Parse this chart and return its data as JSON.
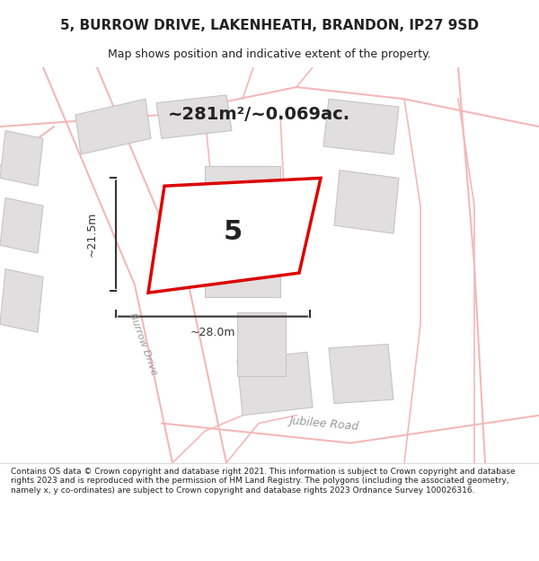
{
  "title": "5, BURROW DRIVE, LAKENHEATH, BRANDON, IP27 9SD",
  "subtitle": "Map shows position and indicative extent of the property.",
  "area_text": "~281m²/~0.069ac.",
  "number_label": "5",
  "dim_width": "~28.0m",
  "dim_height": "~21.5m",
  "footer": "Contains OS data © Crown copyright and database right 2021. This information is subject to Crown copyright and database rights 2023 and is reproduced with the permission of HM Land Registry. The polygons (including the associated geometry, namely x, y co-ordinates) are subject to Crown copyright and database rights 2023 Ordnance Survey 100026316.",
  "bg_color": "#f5f0f0",
  "map_bg": "#f8f5f5",
  "road_color": "#f4b8b8",
  "building_color": "#e0dede",
  "building_edge": "#c8c4c4",
  "plot_color": "#ffffff",
  "plot_edge": "#dd0000",
  "dim_color": "#333333",
  "text_color": "#222222",
  "road_label_color": "#999999"
}
